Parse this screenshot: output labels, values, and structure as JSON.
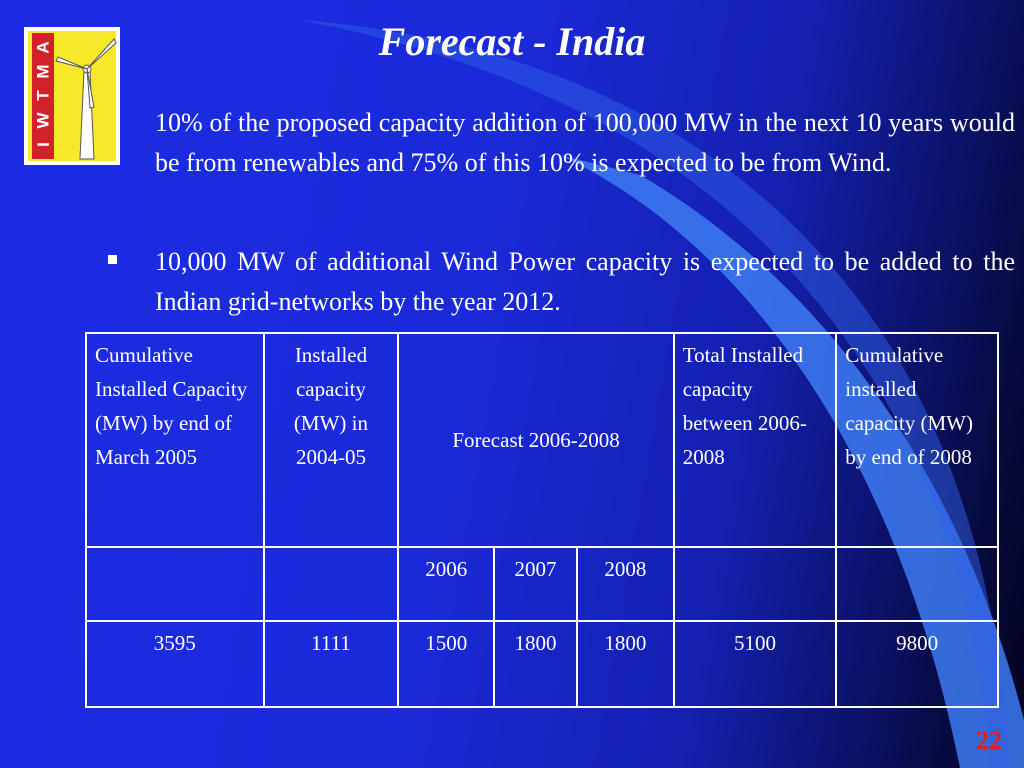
{
  "slide": {
    "title": "Forecast - India",
    "paragraph1": "10% of the proposed capacity addition of 100,000 MW in the next 10 years would be from renewables and 75% of this 10% is expected to be from Wind.",
    "paragraph2": "10,000 MW of additional Wind Power capacity is expected to be added to the Indian grid-networks by the year 2012.",
    "page_number": "22"
  },
  "logo": {
    "letters": [
      "I",
      "W",
      "T",
      "M",
      "A"
    ],
    "colors": {
      "background": "#f7e82a",
      "band": "#d3212b",
      "border": "#ffffff"
    }
  },
  "table": {
    "headers": {
      "cumulative_2005": "Cumulative Installed Capacity (MW) by end of March 2005",
      "installed_line1": "Installed capacity",
      "installed_line2": "(MW) in 2004-05",
      "forecast": "Forecast 2006-2008",
      "total_installed": "Total Installed capacity between 2006-2008",
      "cumulative_2008": "Cumulative installed capacity (MW) by end of 2008"
    },
    "years": [
      "2006",
      "2007",
      "2008"
    ],
    "values": [
      "3595",
      "1111",
      "1500",
      "1800",
      "1800",
      "5100",
      "9800"
    ]
  },
  "colors": {
    "background": "#1c2ce6",
    "text": "#ffffff",
    "page_number": "#e02020"
  }
}
